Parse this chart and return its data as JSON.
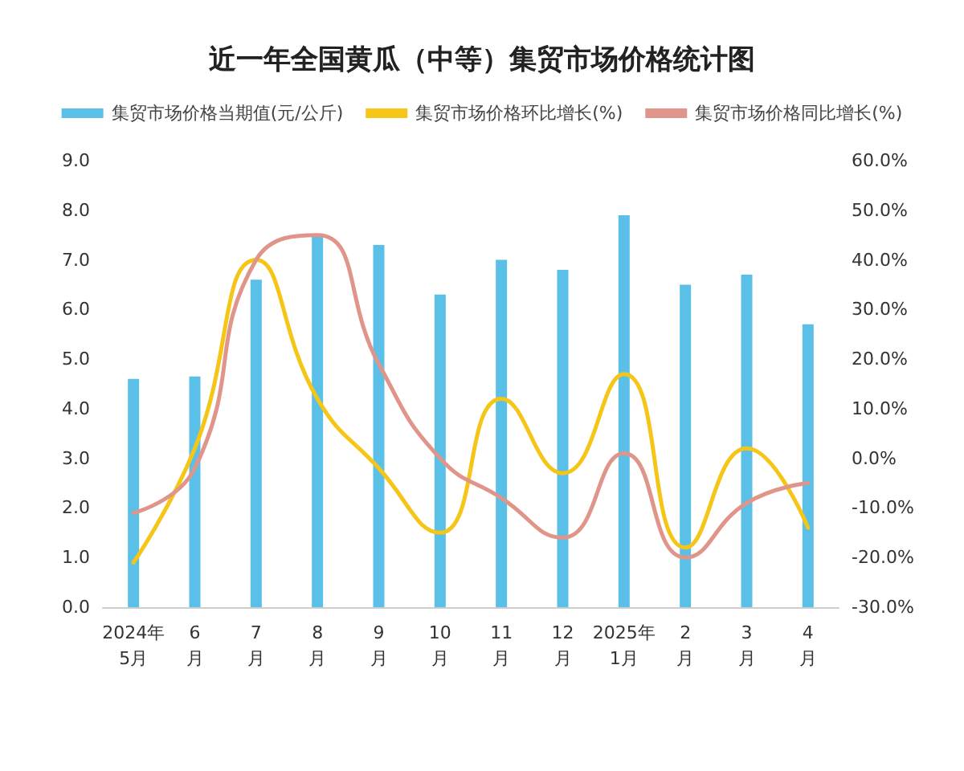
{
  "chart_data": {
    "type": "bar",
    "title": "近一年全国黄瓜（中等）集贸市场价格统计图",
    "categories": [
      "2024年\n5月",
      "6\n月",
      "7\n月",
      "8\n月",
      "9\n月",
      "10\n月",
      "11\n月",
      "12\n月",
      "2025年\n1月",
      "2\n月",
      "3\n月",
      "4\n月"
    ],
    "series": [
      {
        "name": "集贸市场价格当期值(元/公斤)",
        "color": "#5bc0e8",
        "values": [
          4.6,
          4.65,
          6.6,
          7.5,
          7.3,
          6.3,
          7.0,
          6.8,
          7.9,
          6.5,
          6.7,
          5.7
        ]
      },
      {
        "name": "集贸市场价格环比增长(%)",
        "type": "line",
        "axis": "y2",
        "color": "#f5c518",
        "values": [
          -21,
          2,
          40,
          12,
          -2,
          -15,
          12,
          -3,
          17,
          -18,
          2,
          -14
        ]
      },
      {
        "name": "集贸市场价格同比增长(%)",
        "type": "line",
        "axis": "y2",
        "color": "#e0958a",
        "values": [
          -11,
          -2,
          40,
          45,
          19,
          0,
          -8,
          -16,
          1,
          -20,
          -9,
          -5
        ]
      }
    ],
    "ylim": [
      0,
      9
    ],
    "yticks": [
      {
        "value": 0,
        "label": "0.0"
      },
      {
        "value": 1,
        "label": "1.0"
      },
      {
        "value": 2,
        "label": "2.0"
      },
      {
        "value": 3,
        "label": "3.0"
      },
      {
        "value": 4,
        "label": "4.0"
      },
      {
        "value": 5,
        "label": "5.0"
      },
      {
        "value": 6,
        "label": "6.0"
      },
      {
        "value": 7,
        "label": "7.0"
      },
      {
        "value": 8,
        "label": "8.0"
      },
      {
        "value": 9,
        "label": "9.0"
      }
    ],
    "y2lim": [
      -30,
      60
    ],
    "y2ticks": [
      {
        "value": -30,
        "label": "-30.0%"
      },
      {
        "value": -20,
        "label": "-20.0%"
      },
      {
        "value": -10,
        "label": "-10.0%"
      },
      {
        "value": 0,
        "label": "0.0%"
      },
      {
        "value": 10,
        "label": "10.0%"
      },
      {
        "value": 20,
        "label": "20.0%"
      },
      {
        "value": 30,
        "label": "30.0%"
      },
      {
        "value": 40,
        "label": "40.0%"
      },
      {
        "value": 50,
        "label": "50.0%"
      },
      {
        "value": 60,
        "label": "60.0%"
      }
    ],
    "grid": false,
    "legend": "top",
    "marker": "none",
    "line_style": "solid"
  }
}
